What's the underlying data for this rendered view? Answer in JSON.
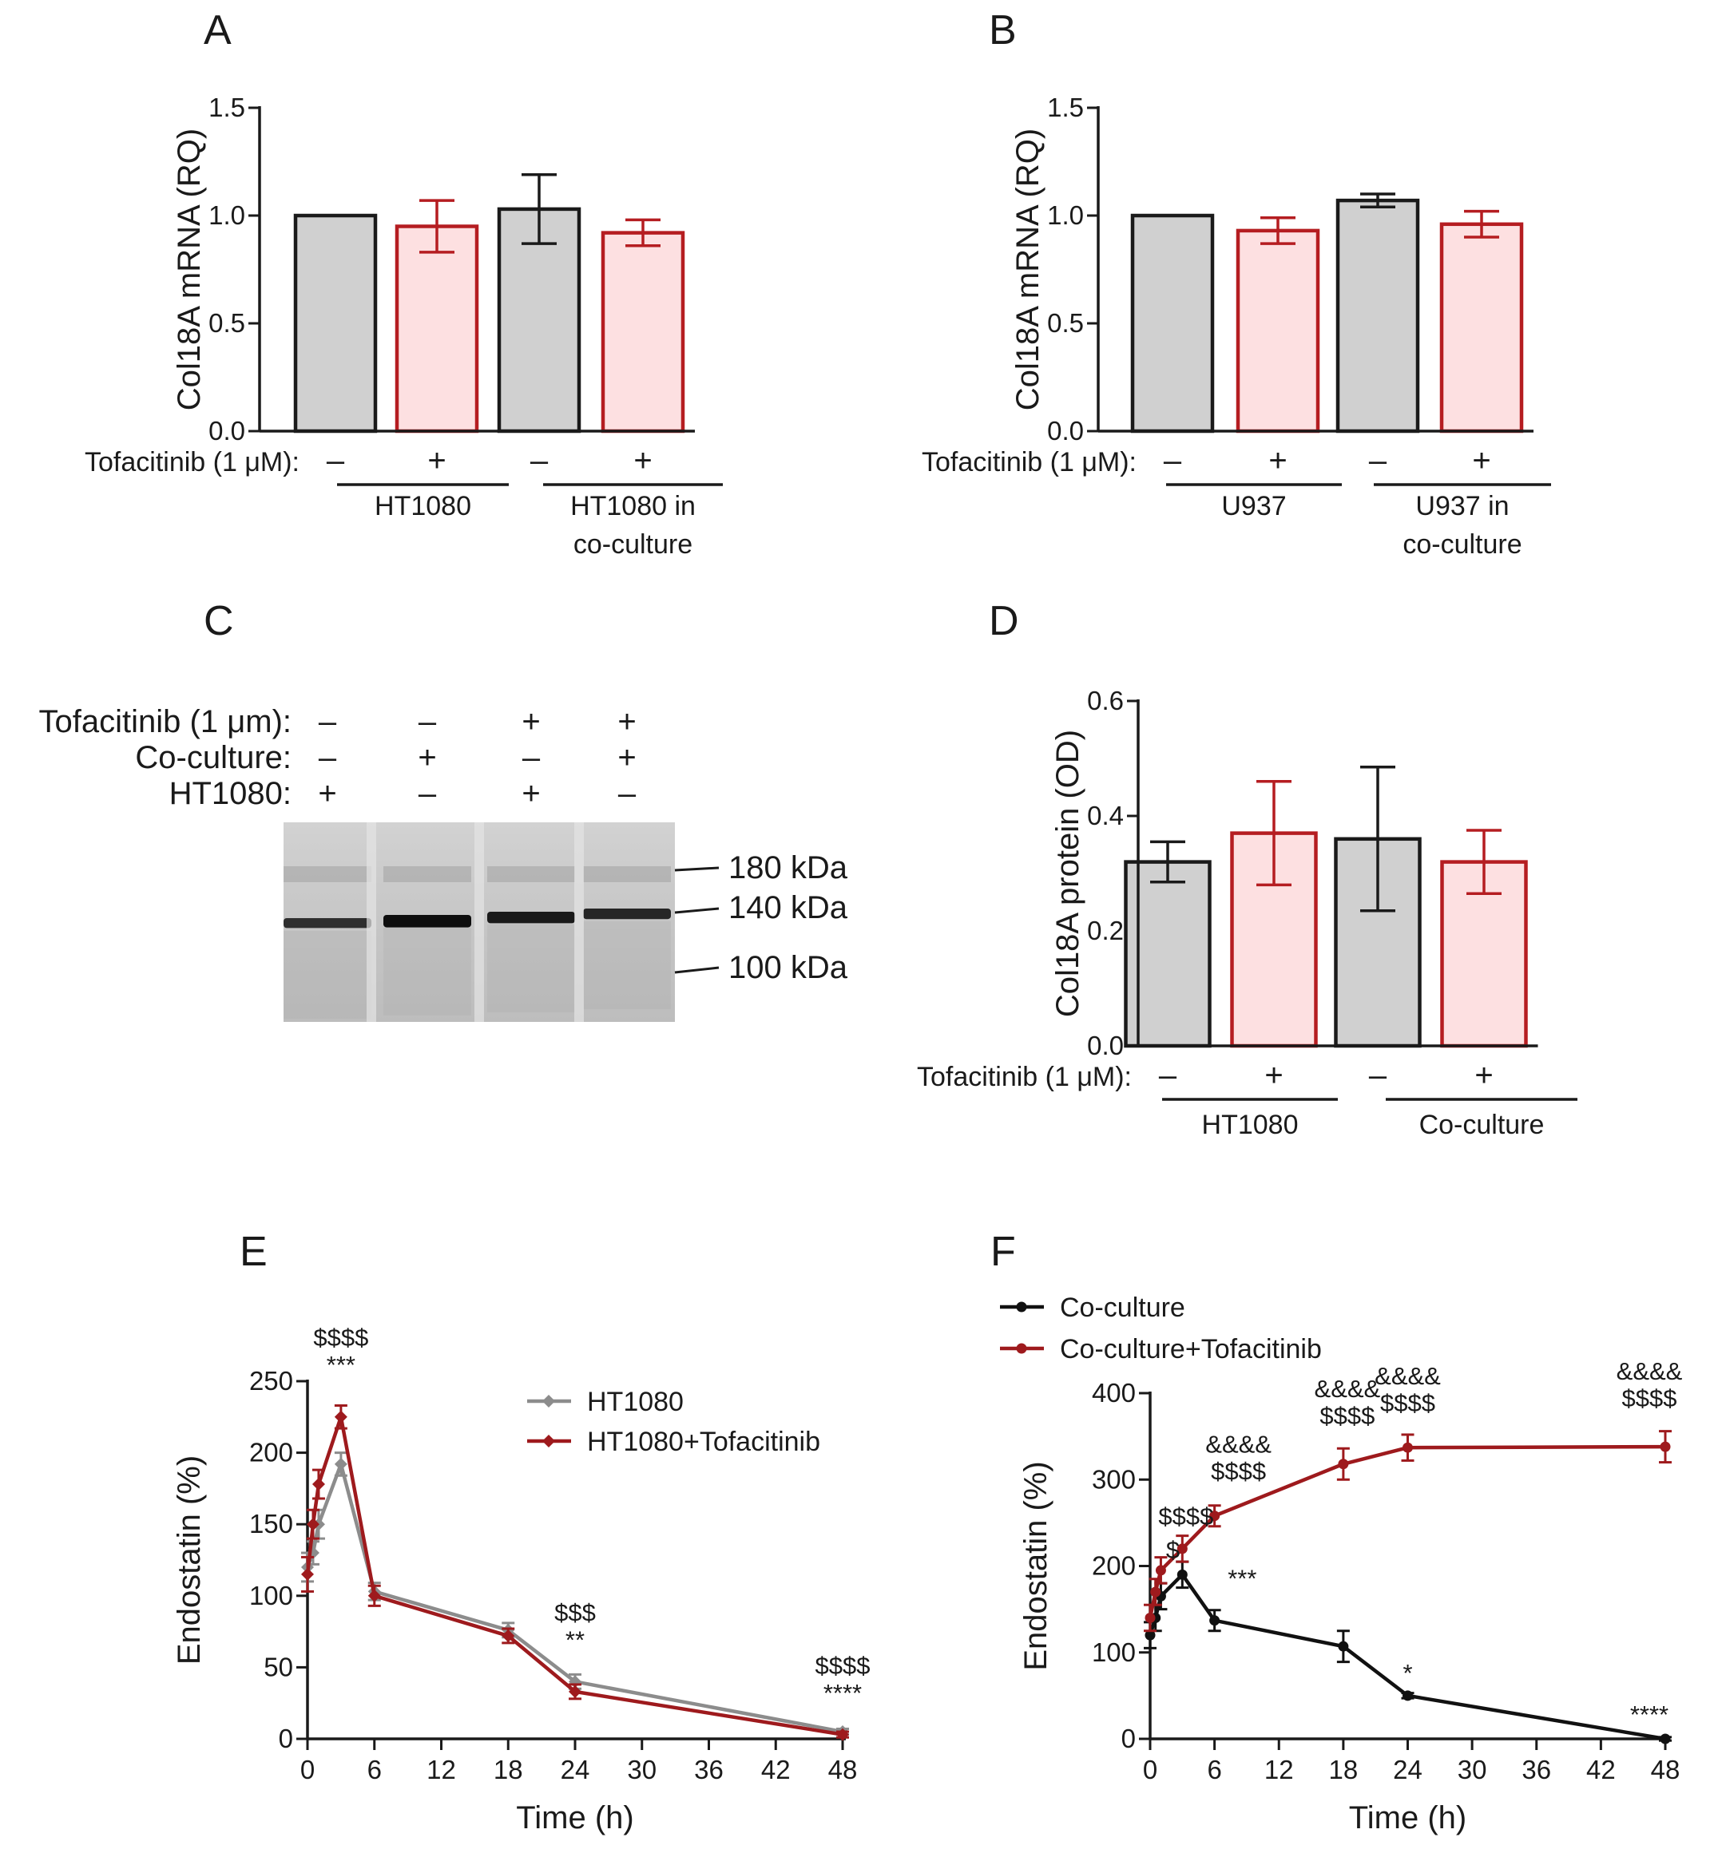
{
  "colors": {
    "control_fill": "#d0d0d0",
    "control_stroke": "#1a1a1a",
    "treated_fill": "#fde0e1",
    "treated_stroke": "#b51d21",
    "hl_gray": "#8c8c8c",
    "dark_red": "#9e1a1d",
    "black": "#111111"
  },
  "chart_data": [
    {
      "id": "A",
      "panel_label": "A",
      "type": "bar",
      "ylabel": "Col18A mRNA (RQ)",
      "ylim": [
        0,
        1.5
      ],
      "yticks": [
        "0.0",
        "0.5",
        "1.0",
        "1.5"
      ],
      "treatment_label": "Tofacitinib (1 μM):",
      "signs": [
        "–",
        "+",
        "–",
        "+"
      ],
      "groups": [
        {
          "label": "HT1080"
        },
        {
          "label": "HT1080 in co-culture"
        }
      ],
      "bars": [
        {
          "value": 1.0,
          "err": 0,
          "treated": false
        },
        {
          "value": 0.95,
          "err": 0.12,
          "treated": true
        },
        {
          "value": 1.03,
          "err": 0.16,
          "treated": false
        },
        {
          "value": 0.92,
          "err": 0.06,
          "treated": true
        }
      ]
    },
    {
      "id": "B",
      "panel_label": "B",
      "type": "bar",
      "ylabel": "Col18A mRNA (RQ)",
      "ylim": [
        0,
        1.5
      ],
      "yticks": [
        "0.0",
        "0.5",
        "1.0",
        "1.5"
      ],
      "treatment_label": "Tofacitinib (1 μM):",
      "signs": [
        "–",
        "+",
        "–",
        "+"
      ],
      "groups": [
        {
          "label": "U937"
        },
        {
          "label": "U937 in co-culture"
        }
      ],
      "bars": [
        {
          "value": 1.0,
          "err": 0,
          "treated": false
        },
        {
          "value": 0.93,
          "err": 0.06,
          "treated": true
        },
        {
          "value": 1.07,
          "err": 0.03,
          "treated": false
        },
        {
          "value": 0.96,
          "err": 0.06,
          "treated": true
        }
      ]
    },
    {
      "id": "D",
      "panel_label": "D",
      "type": "bar",
      "ylabel": "Col18A protein (OD)",
      "ylim": [
        0,
        0.6
      ],
      "yticks": [
        "0.0",
        "0.2",
        "0.4",
        "0.6"
      ],
      "treatment_label": "Tofacitinib (1 μM):",
      "signs": [
        "–",
        "+",
        "–",
        "+"
      ],
      "groups": [
        {
          "label": "HT1080"
        },
        {
          "label": "Co-culture"
        }
      ],
      "bars": [
        {
          "value": 0.32,
          "err": 0.035,
          "treated": false
        },
        {
          "value": 0.37,
          "err": 0.09,
          "treated": true
        },
        {
          "value": 0.36,
          "err": 0.125,
          "treated": false
        },
        {
          "value": 0.32,
          "err": 0.055,
          "treated": true
        }
      ]
    },
    {
      "id": "E",
      "panel_label": "E",
      "type": "line",
      "xlabel": "Time (h)",
      "ylabel": "Endostatin (%)",
      "xlim": [
        0,
        48
      ],
      "ylim": [
        0,
        250
      ],
      "xticks": [
        "0",
        "6",
        "12",
        "18",
        "24",
        "30",
        "36",
        "42",
        "48"
      ],
      "yticks": [
        "0",
        "50",
        "100",
        "150",
        "200",
        "250"
      ],
      "series": [
        {
          "name": "HT1080",
          "color_key": "hl_gray",
          "x": [
            0,
            0.5,
            1,
            3,
            6,
            18,
            24,
            48
          ],
          "y": [
            120,
            130,
            150,
            192,
            103,
            76,
            40,
            5
          ],
          "err": [
            10,
            8,
            10,
            8,
            6,
            5,
            5,
            2
          ]
        },
        {
          "name": "HT1080+Tofacitinib",
          "color_key": "dark_red",
          "x": [
            0,
            0.5,
            1,
            3,
            6,
            18,
            24,
            48
          ],
          "y": [
            115,
            150,
            178,
            225,
            100,
            72,
            33,
            3
          ],
          "err": [
            12,
            10,
            10,
            8,
            7,
            5,
            5,
            2
          ]
        }
      ],
      "annotations": [
        {
          "x": 3,
          "y": 225,
          "lines": [
            "$$$$",
            "***"
          ]
        },
        {
          "x": 24,
          "y": 40,
          "lines": [
            "$$$",
            "**"
          ]
        },
        {
          "x": 48,
          "y": 5,
          "lines": [
            "$$$$",
            "****"
          ]
        }
      ]
    },
    {
      "id": "F",
      "panel_label": "F",
      "type": "line",
      "xlabel": "Time (h)",
      "ylabel": "Endostatin (%)",
      "xlim": [
        0,
        48
      ],
      "ylim": [
        0,
        400
      ],
      "xticks": [
        "0",
        "6",
        "12",
        "18",
        "24",
        "30",
        "36",
        "42",
        "48"
      ],
      "yticks": [
        "0",
        "100",
        "200",
        "300",
        "400"
      ],
      "series": [
        {
          "name": "Co-culture",
          "color_key": "black",
          "x": [
            0,
            0.5,
            1,
            3,
            6,
            18,
            24,
            48
          ],
          "y": [
            120,
            140,
            165,
            190,
            137,
            107,
            50,
            0
          ],
          "err": [
            15,
            15,
            15,
            15,
            12,
            18,
            3,
            2
          ]
        },
        {
          "name": "Co-culture+Tofacitinib",
          "color_key": "dark_red",
          "x": [
            0,
            0.5,
            1,
            3,
            6,
            18,
            24,
            48
          ],
          "y": [
            140,
            170,
            195,
            220,
            258,
            318,
            337,
            338
          ],
          "err": [
            15,
            15,
            15,
            15,
            12,
            18,
            15,
            18
          ]
        }
      ],
      "annotations": [
        {
          "x": 1,
          "y": 195,
          "lines": [
            "$"
          ]
        },
        {
          "x": 2,
          "y": 220,
          "lines": [
            "$$$$"
          ]
        },
        {
          "x": 6,
          "y": 258,
          "lines": [
            "&&&&",
            "$$$$"
          ]
        },
        {
          "x": 18,
          "y": 318,
          "lines": [
            "&&&&",
            "$$$$"
          ]
        },
        {
          "x": 24,
          "y": 337,
          "lines": [
            "&&&&",
            "$$$$"
          ]
        },
        {
          "x": 48,
          "y": 338,
          "lines": [
            "&&&&",
            "$$$$"
          ]
        },
        {
          "x": 3,
          "y": 190,
          "lines": [
            "***"
          ]
        },
        {
          "x": 24,
          "y": 50,
          "lines": [
            "*"
          ]
        },
        {
          "x": 48,
          "y": 0,
          "lines": [
            "****"
          ]
        }
      ]
    }
  ],
  "blot": {
    "panel_label": "C",
    "rows": [
      {
        "label": "Tofacitinib (1 μm):",
        "signs": [
          "–",
          "–",
          "+",
          "+"
        ]
      },
      {
        "label": "Co-culture:",
        "signs": [
          "–",
          "+",
          "–",
          "+"
        ]
      },
      {
        "label": "HT1080:",
        "signs": [
          "+",
          "–",
          "+",
          "–"
        ]
      }
    ],
    "band_intensity": [
      0.55,
      0.95,
      0.8,
      0.65
    ],
    "markers": [
      "180 kDa",
      "140 kDa",
      "100 kDa"
    ]
  }
}
